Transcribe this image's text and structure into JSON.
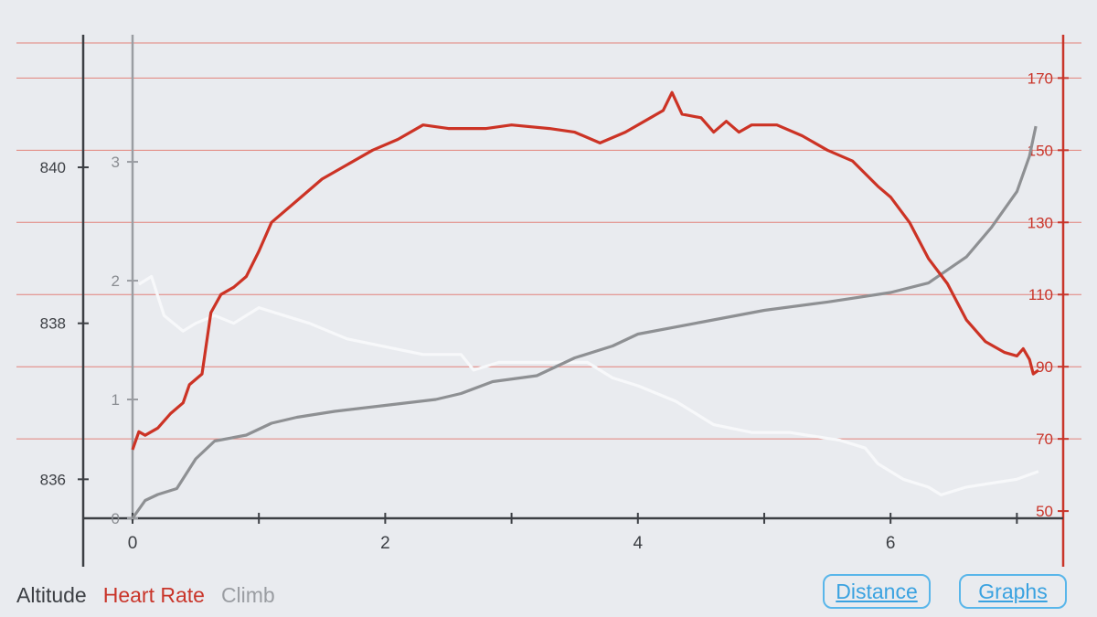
{
  "chart_data": {
    "type": "line",
    "x_axis": {
      "range": [
        0,
        7.2
      ],
      "ticks": [
        0,
        2,
        4,
        6
      ],
      "minor_ticks": [
        1,
        3,
        5,
        7
      ]
    },
    "axes": {
      "altitude": {
        "ticks": [
          836,
          838,
          840
        ],
        "range": [
          835.5,
          841.7
        ],
        "color": "#3c3f44"
      },
      "climb": {
        "ticks": [
          0,
          1,
          2,
          3
        ],
        "range": [
          0,
          4.07
        ],
        "color": "#8a8d92"
      },
      "heart_rate": {
        "ticks": [
          50,
          70,
          90,
          110,
          130,
          150,
          170
        ],
        "range": [
          48,
          182
        ],
        "color": "#c9352a"
      }
    },
    "grid": "horizontal lines at heart-rate ticks",
    "series": [
      {
        "axis": "heart_rate",
        "color": "#cc3325",
        "points": [
          [
            0,
            67
          ],
          [
            0.05,
            72
          ],
          [
            0.1,
            71
          ],
          [
            0.2,
            73
          ],
          [
            0.3,
            77
          ],
          [
            0.4,
            80
          ],
          [
            0.45,
            85
          ],
          [
            0.55,
            88
          ],
          [
            0.62,
            105
          ],
          [
            0.7,
            110
          ],
          [
            0.8,
            112
          ],
          [
            0.9,
            115
          ],
          [
            1,
            122
          ],
          [
            1.1,
            130
          ],
          [
            1.3,
            136
          ],
          [
            1.5,
            142
          ],
          [
            1.7,
            146
          ],
          [
            1.9,
            150
          ],
          [
            2.1,
            153
          ],
          [
            2.3,
            157
          ],
          [
            2.5,
            156
          ],
          [
            2.8,
            156
          ],
          [
            3.0,
            157
          ],
          [
            3.3,
            156
          ],
          [
            3.5,
            155
          ],
          [
            3.7,
            152
          ],
          [
            3.9,
            155
          ],
          [
            4.1,
            159
          ],
          [
            4.2,
            161
          ],
          [
            4.27,
            166
          ],
          [
            4.35,
            160
          ],
          [
            4.5,
            159
          ],
          [
            4.6,
            155
          ],
          [
            4.7,
            158
          ],
          [
            4.8,
            155
          ],
          [
            4.9,
            157
          ],
          [
            5.0,
            157
          ],
          [
            5.1,
            157
          ],
          [
            5.3,
            154
          ],
          [
            5.5,
            150
          ],
          [
            5.7,
            147
          ],
          [
            5.9,
            140
          ],
          [
            6.0,
            137
          ],
          [
            6.15,
            130
          ],
          [
            6.3,
            120
          ],
          [
            6.45,
            113
          ],
          [
            6.6,
            103
          ],
          [
            6.75,
            97
          ],
          [
            6.9,
            94
          ],
          [
            7.0,
            93
          ],
          [
            7.05,
            95
          ],
          [
            7.1,
            92
          ],
          [
            7.13,
            88
          ],
          [
            7.17,
            89
          ]
        ]
      },
      {
        "axis": "altitude",
        "color": "#f7f8fa",
        "points": [
          [
            0.05,
            838.5
          ],
          [
            0.15,
            838.6
          ],
          [
            0.25,
            838.1
          ],
          [
            0.4,
            837.9
          ],
          [
            0.5,
            838.0
          ],
          [
            0.65,
            838.1
          ],
          [
            0.8,
            838.0
          ],
          [
            1.0,
            838.2
          ],
          [
            1.2,
            838.1
          ],
          [
            1.4,
            838.0
          ],
          [
            1.7,
            837.8
          ],
          [
            2.0,
            837.7
          ],
          [
            2.3,
            837.6
          ],
          [
            2.6,
            837.6
          ],
          [
            2.7,
            837.4
          ],
          [
            2.9,
            837.5
          ],
          [
            3.2,
            837.5
          ],
          [
            3.6,
            837.5
          ],
          [
            3.8,
            837.3
          ],
          [
            4.0,
            837.2
          ],
          [
            4.3,
            837.0
          ],
          [
            4.6,
            836.7
          ],
          [
            4.9,
            836.6
          ],
          [
            5.2,
            836.6
          ],
          [
            5.6,
            836.5
          ],
          [
            5.8,
            836.4
          ],
          [
            5.9,
            836.2
          ],
          [
            6.1,
            836.0
          ],
          [
            6.3,
            835.9
          ],
          [
            6.4,
            835.8
          ],
          [
            6.6,
            835.9
          ],
          [
            6.8,
            835.95
          ],
          [
            7.0,
            836.0
          ],
          [
            7.17,
            836.1
          ]
        ]
      },
      {
        "axis": "climb",
        "color": "#8e9093",
        "points": [
          [
            0,
            0
          ],
          [
            0.1,
            0.15
          ],
          [
            0.2,
            0.2
          ],
          [
            0.35,
            0.25
          ],
          [
            0.5,
            0.5
          ],
          [
            0.65,
            0.65
          ],
          [
            0.9,
            0.7
          ],
          [
            1.1,
            0.8
          ],
          [
            1.3,
            0.85
          ],
          [
            1.6,
            0.9
          ],
          [
            2.0,
            0.95
          ],
          [
            2.4,
            1.0
          ],
          [
            2.6,
            1.05
          ],
          [
            2.85,
            1.15
          ],
          [
            3.2,
            1.2
          ],
          [
            3.5,
            1.35
          ],
          [
            3.8,
            1.45
          ],
          [
            4.0,
            1.55
          ],
          [
            4.5,
            1.65
          ],
          [
            5.0,
            1.75
          ],
          [
            5.5,
            1.82
          ],
          [
            6.0,
            1.9
          ],
          [
            6.3,
            1.98
          ],
          [
            6.6,
            2.2
          ],
          [
            6.8,
            2.45
          ],
          [
            7.0,
            2.75
          ],
          [
            7.1,
            3.05
          ],
          [
            7.15,
            3.3
          ]
        ]
      }
    ]
  },
  "legend": {
    "altitude": {
      "label": "Altitude",
      "color": "#3c3f44"
    },
    "heart_rate": {
      "label": "Heart Rate",
      "color": "#c9352a"
    },
    "climb": {
      "label": "Climb",
      "color": "#9a9da2"
    }
  },
  "buttons": {
    "distance": "Distance",
    "graphs": "Graphs"
  }
}
